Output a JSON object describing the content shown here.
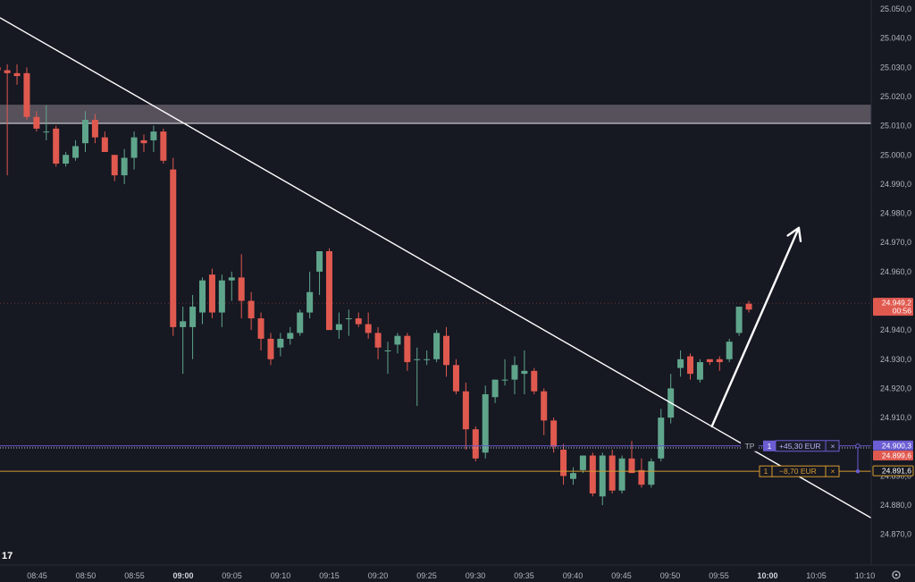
{
  "chart_data": {
    "type": "candlestick",
    "instrument_last_price": "24.949,2",
    "countdown": "00:56",
    "y_ticks": [
      "25.050,0",
      "25.040,0",
      "25.030,0",
      "25.020,0",
      "25.010,0",
      "25.000,0",
      "24.990,0",
      "24.980,0",
      "24.970,0",
      "24.960,0",
      "24.950,0",
      "24.940,0",
      "24.930,0",
      "24.920,0",
      "24.910,0",
      "24.900,0",
      "24.890,0",
      "24.880,0",
      "24.870,0"
    ],
    "y_tick_values": [
      25050,
      25040,
      25030,
      25020,
      25010,
      25000,
      24990,
      24980,
      24970,
      24960,
      24950,
      24940,
      24930,
      24920,
      24910,
      24900,
      24890,
      24880,
      24870
    ],
    "x_ticks": [
      "08:45",
      "08:50",
      "08:55",
      "09:00",
      "09:05",
      "09:10",
      "09:15",
      "09:20",
      "09:25",
      "09:30",
      "09:35",
      "09:40",
      "09:45",
      "09:50",
      "09:55",
      "10:00",
      "10:05",
      "10:10"
    ],
    "x_tick_bold": [
      "09:00",
      "10:00"
    ],
    "ylim": [
      24866,
      25052
    ],
    "candles": [
      {
        "o": 25030,
        "h": 25034,
        "l": 25025,
        "c": 25029
      },
      {
        "o": 25029,
        "h": 25031,
        "l": 24993,
        "c": 25028
      },
      {
        "o": 25028,
        "h": 25031,
        "l": 25024,
        "c": 25027
      },
      {
        "o": 25028,
        "h": 25030,
        "l": 25012,
        "c": 25013
      },
      {
        "o": 25013,
        "h": 25015,
        "l": 25008,
        "c": 25009
      },
      {
        "o": 25008,
        "h": 25017,
        "l": 25005,
        "c": 25008
      },
      {
        "o": 25009,
        "h": 25010,
        "l": 24996,
        "c": 24997
      },
      {
        "o": 24997,
        "h": 25001,
        "l": 24996,
        "c": 25000
      },
      {
        "o": 24999,
        "h": 25005,
        "l": 24998,
        "c": 25003
      },
      {
        "o": 25004,
        "h": 25015,
        "l": 25001,
        "c": 25012
      },
      {
        "o": 25012,
        "h": 25014,
        "l": 25004,
        "c": 25006
      },
      {
        "o": 25006,
        "h": 25008,
        "l": 25001,
        "c": 25001
      },
      {
        "o": 25000,
        "h": 25000,
        "l": 24991,
        "c": 24993
      },
      {
        "o": 24993,
        "h": 25002,
        "l": 24990,
        "c": 24999
      },
      {
        "o": 24999,
        "h": 25008,
        "l": 24995,
        "c": 25006
      },
      {
        "o": 25005,
        "h": 25007,
        "l": 25001,
        "c": 25004
      },
      {
        "o": 25005,
        "h": 25010,
        "l": 25001,
        "c": 25008
      },
      {
        "o": 25008,
        "h": 25009,
        "l": 24997,
        "c": 24998
      },
      {
        "o": 24995,
        "h": 24999,
        "l": 24938,
        "c": 24941
      },
      {
        "o": 24941,
        "h": 24948,
        "l": 24925,
        "c": 24943
      },
      {
        "o": 24941,
        "h": 24952,
        "l": 24930,
        "c": 24948
      },
      {
        "o": 24946,
        "h": 24958,
        "l": 24942,
        "c": 24957
      },
      {
        "o": 24959,
        "h": 24961,
        "l": 24944,
        "c": 24946
      },
      {
        "o": 24946,
        "h": 24959,
        "l": 24941,
        "c": 24957
      },
      {
        "o": 24957,
        "h": 24960,
        "l": 24950,
        "c": 24958
      },
      {
        "o": 24958,
        "h": 24966,
        "l": 24944,
        "c": 24950
      },
      {
        "o": 24950,
        "h": 24953,
        "l": 24940,
        "c": 24944
      },
      {
        "o": 24944,
        "h": 24946,
        "l": 24933,
        "c": 24937
      },
      {
        "o": 24937,
        "h": 24939,
        "l": 24928,
        "c": 24930
      },
      {
        "o": 24934,
        "h": 24939,
        "l": 24931,
        "c": 24937
      },
      {
        "o": 24937,
        "h": 24941,
        "l": 24935,
        "c": 24939
      },
      {
        "o": 24939,
        "h": 24947,
        "l": 24938,
        "c": 24946
      },
      {
        "o": 24946,
        "h": 24960,
        "l": 24944,
        "c": 24953
      },
      {
        "o": 24960,
        "h": 24967,
        "l": 24952,
        "c": 24967
      },
      {
        "o": 24967,
        "h": 24968,
        "l": 24940,
        "c": 24940
      },
      {
        "o": 24940,
        "h": 24946,
        "l": 24937,
        "c": 24942
      },
      {
        "o": 24944,
        "h": 24947,
        "l": 24938,
        "c": 24944
      },
      {
        "o": 24944,
        "h": 24946,
        "l": 24941,
        "c": 24942
      },
      {
        "o": 24942,
        "h": 24946,
        "l": 24937,
        "c": 24939
      },
      {
        "o": 24939,
        "h": 24941,
        "l": 24930,
        "c": 24934
      },
      {
        "o": 24933,
        "h": 24936,
        "l": 24925,
        "c": 24933
      },
      {
        "o": 24935,
        "h": 24939,
        "l": 24932,
        "c": 24938
      },
      {
        "o": 24938,
        "h": 24939,
        "l": 24926,
        "c": 24929
      },
      {
        "o": 24930,
        "h": 24934,
        "l": 24914,
        "c": 24930
      },
      {
        "o": 24930,
        "h": 24933,
        "l": 24928,
        "c": 24930
      },
      {
        "o": 24930,
        "h": 24940,
        "l": 24929,
        "c": 24939
      },
      {
        "o": 24938,
        "h": 24941,
        "l": 24924,
        "c": 24928
      },
      {
        "o": 24928,
        "h": 24930,
        "l": 24918,
        "c": 24919
      },
      {
        "o": 24919,
        "h": 24922,
        "l": 24899,
        "c": 24906
      },
      {
        "o": 24906,
        "h": 24907,
        "l": 24895,
        "c": 24896
      },
      {
        "o": 24898,
        "h": 24921,
        "l": 24896,
        "c": 24918
      },
      {
        "o": 24917,
        "h": 24923,
        "l": 24915,
        "c": 24923
      },
      {
        "o": 24923,
        "h": 24930,
        "l": 24921,
        "c": 24923
      },
      {
        "o": 24923,
        "h": 24931,
        "l": 24918,
        "c": 24928
      },
      {
        "o": 24925,
        "h": 24933,
        "l": 24918,
        "c": 24926
      },
      {
        "o": 24926,
        "h": 24927,
        "l": 24918,
        "c": 24919
      },
      {
        "o": 24919,
        "h": 24920,
        "l": 24904,
        "c": 24909
      },
      {
        "o": 24909,
        "h": 24910,
        "l": 24898,
        "c": 24900
      },
      {
        "o": 24899,
        "h": 24901,
        "l": 24887,
        "c": 24890
      },
      {
        "o": 24889,
        "h": 24893,
        "l": 24887,
        "c": 24891
      },
      {
        "o": 24892,
        "h": 24897,
        "l": 24891,
        "c": 24897
      },
      {
        "o": 24897,
        "h": 24898,
        "l": 24883,
        "c": 24884
      },
      {
        "o": 24883,
        "h": 24898,
        "l": 24880,
        "c": 24897
      },
      {
        "o": 24897,
        "h": 24899,
        "l": 24884,
        "c": 24885
      },
      {
        "o": 24885,
        "h": 24897,
        "l": 24884,
        "c": 24896
      },
      {
        "o": 24896,
        "h": 24902,
        "l": 24891,
        "c": 24891
      },
      {
        "o": 24892,
        "h": 24896,
        "l": 24886,
        "c": 24887
      },
      {
        "o": 24887,
        "h": 24896,
        "l": 24886,
        "c": 24895
      },
      {
        "o": 24896,
        "h": 24913,
        "l": 24895,
        "c": 24910
      },
      {
        "o": 24910,
        "h": 24925,
        "l": 24908,
        "c": 24920
      },
      {
        "o": 24927,
        "h": 24933,
        "l": 24924,
        "c": 24930
      },
      {
        "o": 24931,
        "h": 24932,
        "l": 24923,
        "c": 24925
      },
      {
        "o": 24923,
        "h": 24930,
        "l": 24922,
        "c": 24929
      },
      {
        "o": 24930,
        "h": 24930,
        "l": 24928,
        "c": 24929
      },
      {
        "o": 24930,
        "h": 24931,
        "l": 24926,
        "c": 24929
      },
      {
        "o": 24930,
        "h": 24937,
        "l": 24929,
        "c": 24936
      },
      {
        "o": 24939,
        "h": 24948,
        "l": 24938,
        "c": 24948
      },
      {
        "o": 24949,
        "h": 24950,
        "l": 24946,
        "c": 24947
      }
    ],
    "resistance_zone": [
      25010.8,
      25017.2
    ],
    "trendline": {
      "start": {
        "t": 0,
        "v": 25047
      },
      "end": {
        "t": 100,
        "v": 24867
      }
    },
    "arrow": {
      "from": {
        "t": 77.8,
        "v": 24907
      },
      "to": {
        "t": 87.3,
        "v": 24975
      }
    },
    "tp_level": 24900.3,
    "sl_level": 24891.6,
    "entry_level": 24899.6,
    "price_line": 24949.2
  },
  "orders": {
    "tp_label": "TP",
    "tp_qty": "1",
    "tp_pnl": "+45,30 EUR",
    "tp_close": "×",
    "sl_qty": "1",
    "sl_pnl": "−8,70 EUR",
    "sl_close": "×",
    "tp_price": "24.900,3",
    "entry_price": "24.899,6",
    "sl_price": "24.891,6"
  },
  "colors": {
    "bg": "#161822",
    "up": "#5fa58b",
    "down": "#e0594f",
    "tp": "#6b5dd3",
    "sl": "#d79b2f",
    "zone": "#6e6470"
  },
  "icons": {
    "logo": "tv-logo-icon",
    "settings": "settings-gear-icon"
  }
}
